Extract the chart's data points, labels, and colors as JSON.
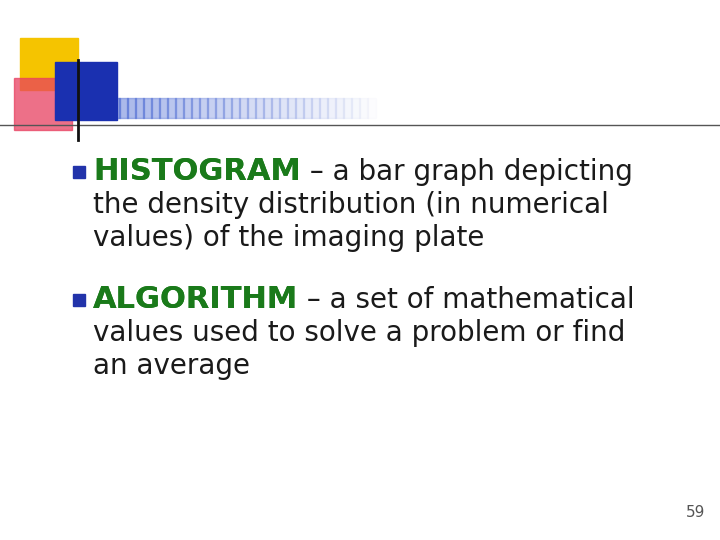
{
  "background_color": "#ffffff",
  "bullet_color": "#2233aa",
  "keyword_color": "#1a7a1a",
  "body_color": "#1a1a1a",
  "page_number": "59",
  "page_number_color": "#555555",
  "logo_yellow": "#f5c400",
  "logo_red": "#e84060",
  "logo_blue_dark": "#1a30b0",
  "logo_blue_fade": "#4060d0",
  "divider_color": "#555555",
  "keyword1": "HISTOGRAM",
  "text1_suffix": " – a bar graph depicting",
  "text1_line2": "the density distribution (in numerical",
  "text1_line3": "values) of the imaging plate",
  "keyword2": "ALGORITHM",
  "text2_suffix": " – a set of mathematical",
  "text2_line2": "values used to solve a problem or find",
  "text2_line3": "an average",
  "font_size_kw": 22,
  "font_size_body": 20,
  "font_size_page": 11
}
